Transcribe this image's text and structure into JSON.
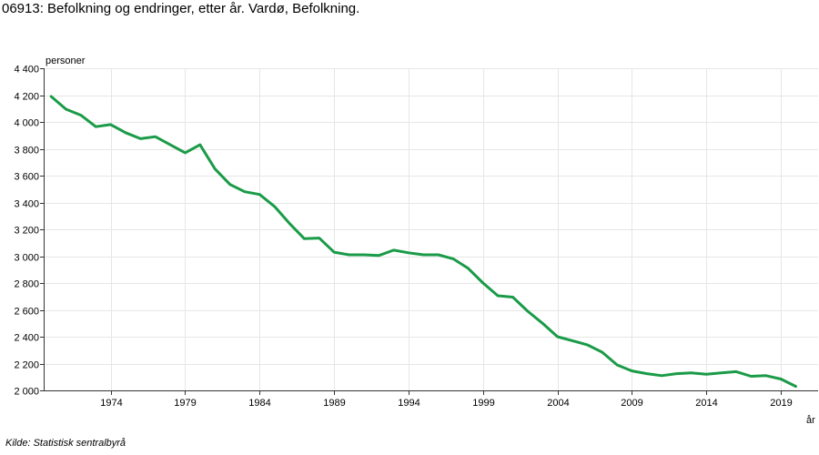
{
  "title": "06913: Befolkning og endringer, etter år. Vardø, Befolkning.",
  "source": "Kilde:  Statistisk sentralbyrå",
  "chart_data": {
    "type": "line",
    "title": "06913: Befolkning og endringer, etter år. Vardø, Befolkning.",
    "ylabel": "personer",
    "xlabel": "år",
    "ylim": [
      2000,
      4400
    ],
    "xlim": [
      1969.5,
      2021.5
    ],
    "yticks": [
      2000,
      2200,
      2400,
      2600,
      2800,
      3000,
      3200,
      3400,
      3600,
      3800,
      4000,
      4200,
      4400
    ],
    "ytick_labels": [
      "2 000",
      "2 200",
      "2 400",
      "2 600",
      "2 800",
      "3 000",
      "3 200",
      "3 400",
      "3 600",
      "3 800",
      "4 000",
      "4 200",
      "4 400"
    ],
    "xticks": [
      1974,
      1979,
      1984,
      1989,
      1994,
      1999,
      2004,
      2009,
      2014,
      2019
    ],
    "xtick_labels": [
      "1974",
      "1979",
      "1984",
      "1989",
      "1994",
      "1999",
      "2004",
      "2009",
      "2014",
      "2019"
    ],
    "grid": true,
    "line_color": "#1a9b48",
    "series": [
      {
        "x": [
          1970,
          1971,
          1972,
          1973,
          1974,
          1975,
          1976,
          1977,
          1978,
          1979,
          1980,
          1981,
          1982,
          1983,
          1984,
          1985,
          1986,
          1987,
          1988,
          1989,
          1990,
          1991,
          1992,
          1993,
          1994,
          1995,
          1996,
          1997,
          1998,
          1999,
          2000,
          2001,
          2002,
          2003,
          2004,
          2005,
          2006,
          2007,
          2008,
          2009,
          2010,
          2011,
          2012,
          2013,
          2014,
          2015,
          2016,
          2017,
          2018,
          2019,
          2020
        ],
        "values": [
          4190,
          4095,
          4050,
          3965,
          3980,
          3920,
          3875,
          3890,
          3830,
          3770,
          3830,
          3650,
          3535,
          3480,
          3460,
          3370,
          3245,
          3130,
          3135,
          3030,
          3010,
          3010,
          3005,
          3045,
          3025,
          3010,
          3010,
          2980,
          2910,
          2800,
          2705,
          2695,
          2590,
          2500,
          2400,
          2370,
          2340,
          2285,
          2190,
          2145,
          2125,
          2110,
          2125,
          2130,
          2120,
          2130,
          2140,
          2105,
          2110,
          2085,
          2030
        ]
      }
    ]
  }
}
